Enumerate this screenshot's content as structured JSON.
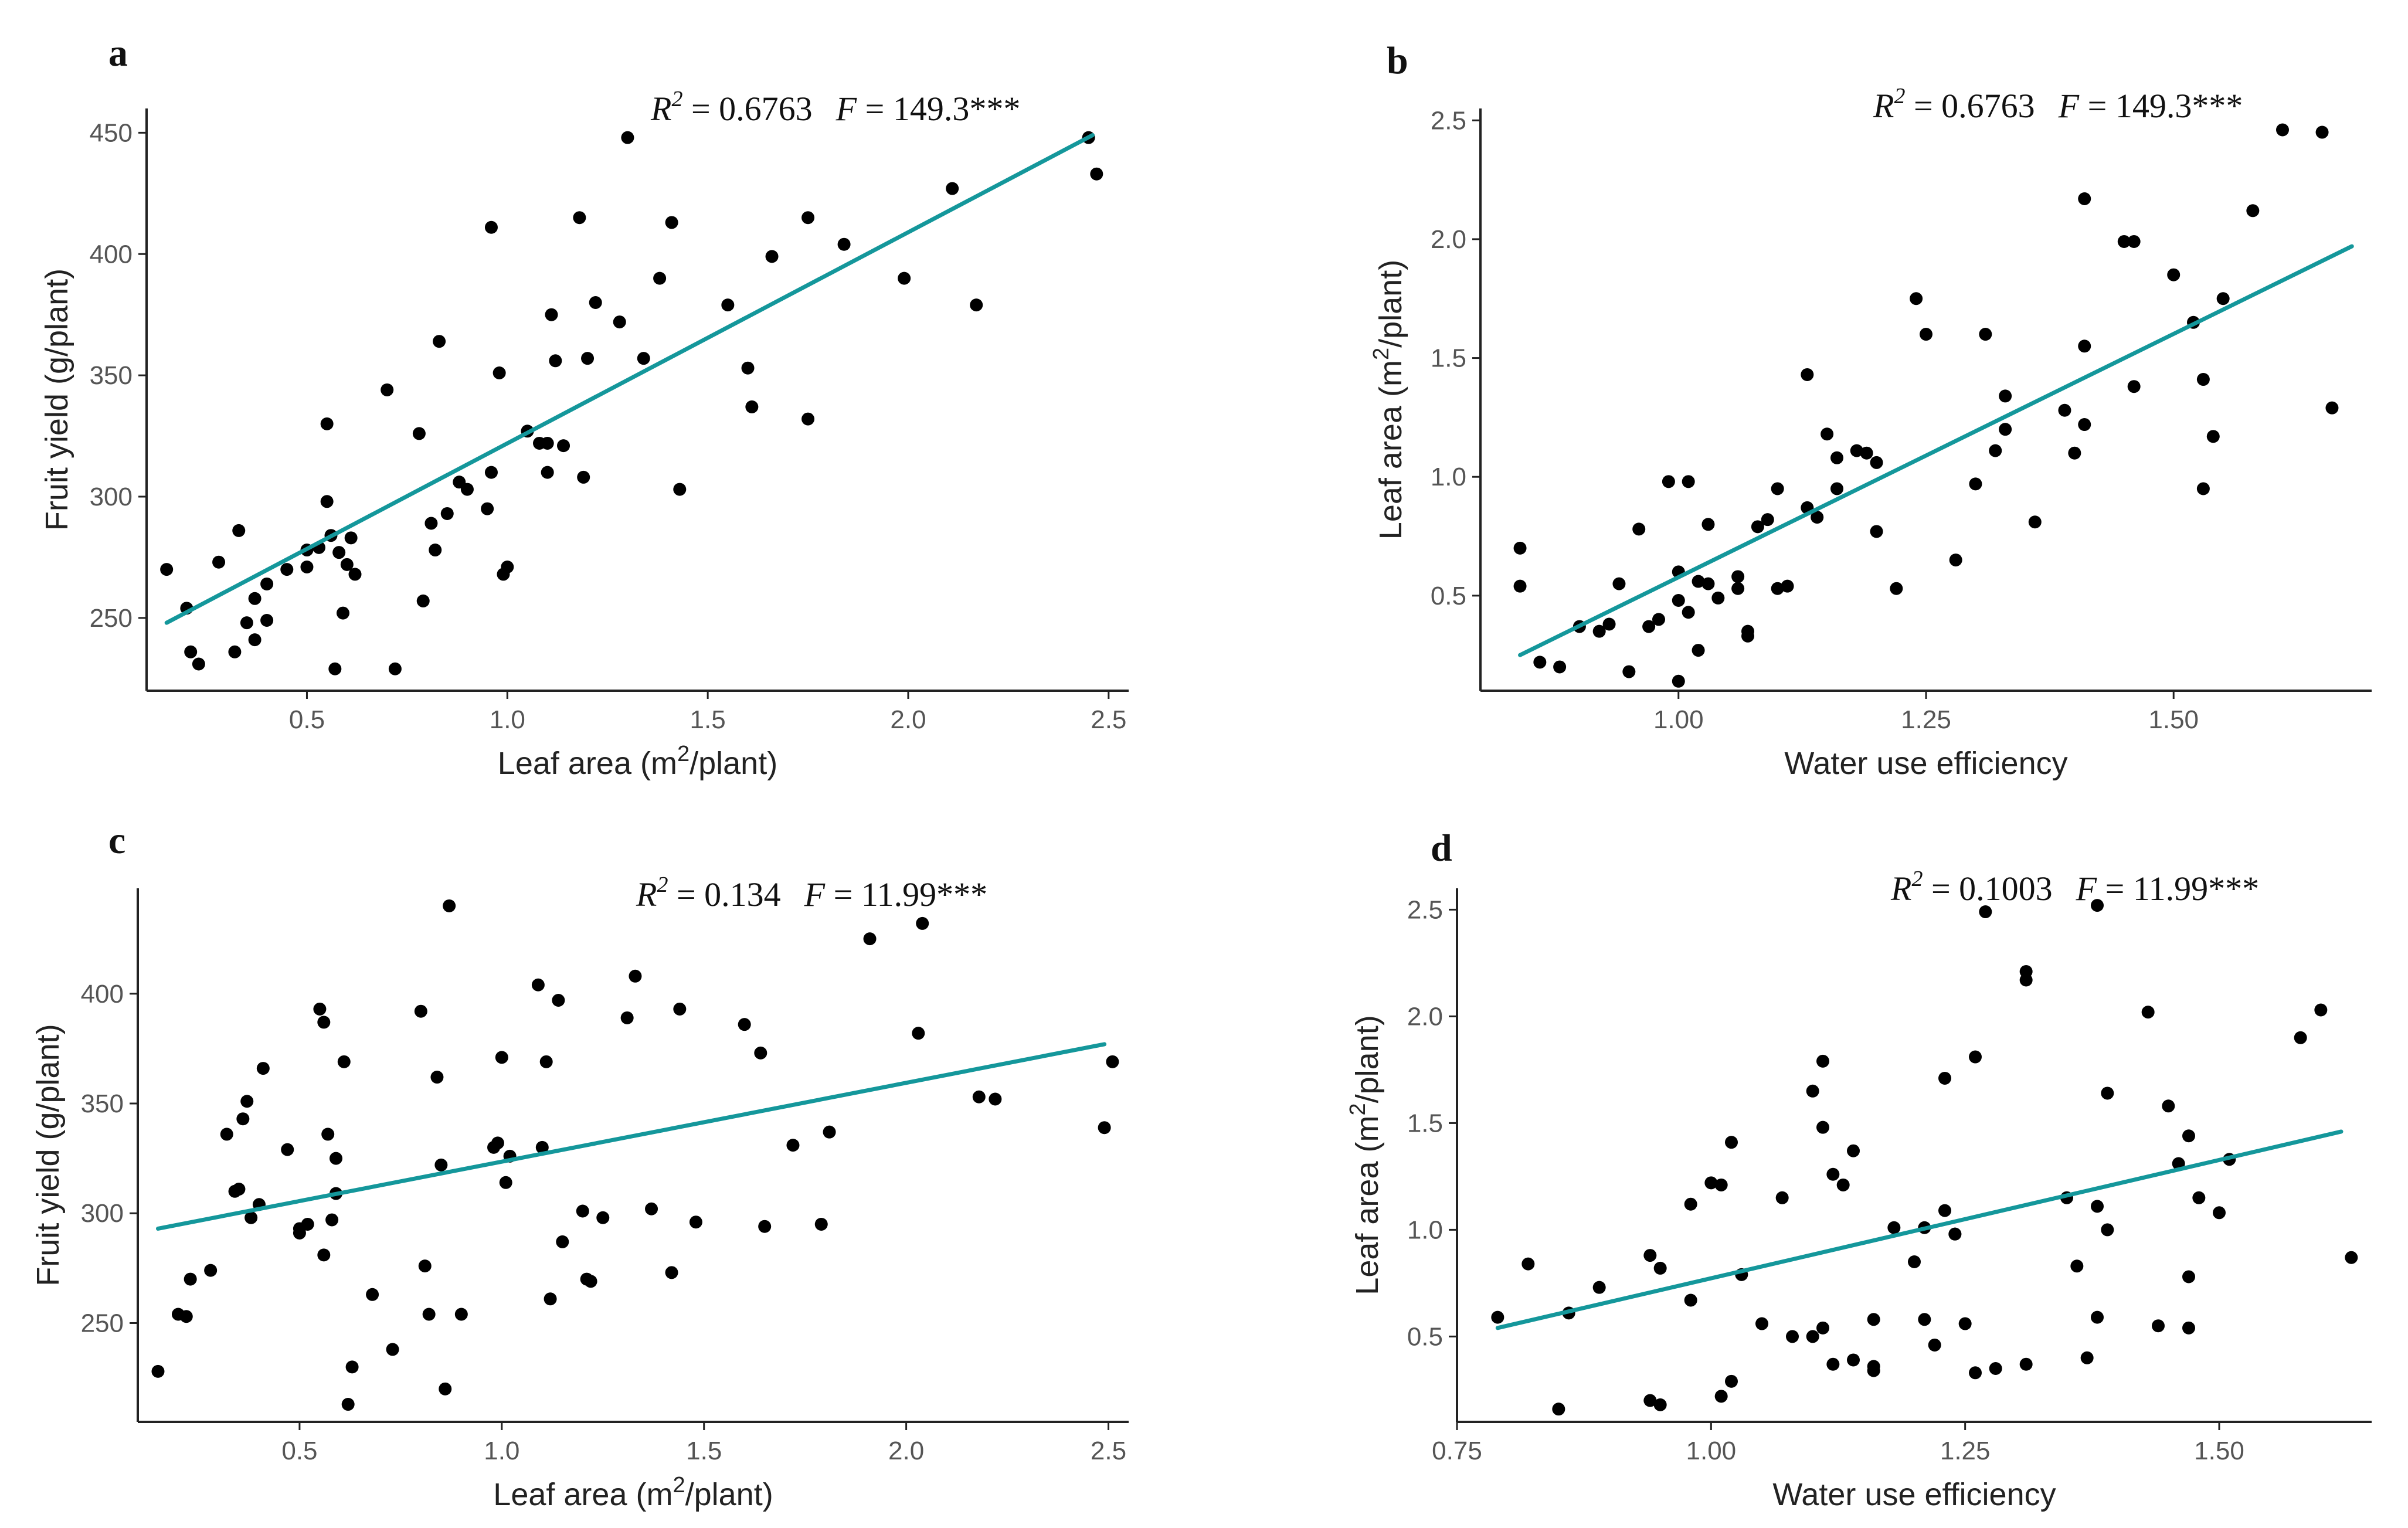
{
  "chart_data": [
    {
      "panel": "a",
      "type": "scatter",
      "stat": {
        "r2": "0.6763",
        "f": "149.3***"
      },
      "xlabel": "Leaf area (m2/plant)",
      "xlabel_parts": {
        "pre": "Leaf area (m",
        "sup": "2",
        "post": "/plant)"
      },
      "ylabel": "Fruit yield (g/plant)",
      "xlim": [
        0.1,
        2.55
      ],
      "ylim": [
        220,
        460
      ],
      "xticks": [
        0.5,
        1.0,
        1.5,
        2.0,
        2.5
      ],
      "xtick_labels": [
        "0.5",
        "1.0",
        "1.5",
        "2.0",
        "2.5"
      ],
      "yticks": [
        250,
        300,
        350,
        400,
        450
      ],
      "ytick_labels": [
        "250",
        "300",
        "350",
        "400",
        "450"
      ],
      "fit": {
        "x": [
          0.15,
          2.46
        ],
        "y": [
          248,
          449
        ]
      },
      "points": [
        [
          0.15,
          270
        ],
        [
          0.2,
          254
        ],
        [
          0.21,
          236
        ],
        [
          0.23,
          231
        ],
        [
          0.28,
          273
        ],
        [
          0.32,
          236
        ],
        [
          0.33,
          286
        ],
        [
          0.35,
          248
        ],
        [
          0.37,
          241
        ],
        [
          0.37,
          258
        ],
        [
          0.4,
          249
        ],
        [
          0.4,
          264
        ],
        [
          0.45,
          270
        ],
        [
          0.5,
          271
        ],
        [
          0.5,
          278
        ],
        [
          0.53,
          279
        ],
        [
          0.55,
          330
        ],
        [
          0.55,
          298
        ],
        [
          0.56,
          284
        ],
        [
          0.57,
          229
        ],
        [
          0.58,
          277
        ],
        [
          0.59,
          252
        ],
        [
          0.6,
          272
        ],
        [
          0.61,
          283
        ],
        [
          0.62,
          268
        ],
        [
          0.7,
          344
        ],
        [
          0.72,
          229
        ],
        [
          0.78,
          326
        ],
        [
          0.79,
          257
        ],
        [
          0.81,
          289
        ],
        [
          0.82,
          278
        ],
        [
          0.83,
          364
        ],
        [
          0.85,
          293
        ],
        [
          0.88,
          306
        ],
        [
          0.9,
          303
        ],
        [
          0.95,
          295
        ],
        [
          0.96,
          411
        ],
        [
          0.96,
          310
        ],
        [
          0.98,
          351
        ],
        [
          0.99,
          268
        ],
        [
          1.0,
          271
        ],
        [
          1.05,
          327
        ],
        [
          1.08,
          322
        ],
        [
          1.1,
          310
        ],
        [
          1.1,
          322
        ],
        [
          1.11,
          375
        ],
        [
          1.12,
          356
        ],
        [
          1.14,
          321
        ],
        [
          1.18,
          415
        ],
        [
          1.19,
          308
        ],
        [
          1.2,
          357
        ],
        [
          1.22,
          380
        ],
        [
          1.28,
          372
        ],
        [
          1.3,
          448
        ],
        [
          1.34,
          357
        ],
        [
          1.38,
          390
        ],
        [
          1.41,
          413
        ],
        [
          1.43,
          303
        ],
        [
          1.55,
          379
        ],
        [
          1.6,
          353
        ],
        [
          1.61,
          337
        ],
        [
          1.66,
          399
        ],
        [
          1.75,
          415
        ],
        [
          1.75,
          332
        ],
        [
          1.84,
          404
        ],
        [
          1.99,
          390
        ],
        [
          2.11,
          427
        ],
        [
          2.17,
          379
        ],
        [
          2.45,
          448
        ],
        [
          2.47,
          433
        ]
      ]
    },
    {
      "panel": "b",
      "type": "scatter",
      "stat": {
        "r2": "0.6763",
        "f": "149.3***"
      },
      "xlabel": "Water use efficiency",
      "ylabel": "Leaf area (m2/plant)",
      "ylabel_parts": {
        "pre": "Leaf area (m",
        "sup": "2",
        "post": "/plant)"
      },
      "xlim": [
        0.8,
        1.7
      ],
      "ylim": [
        0.1,
        2.55
      ],
      "xticks": [
        1.0,
        1.25,
        1.5
      ],
      "xtick_labels": [
        "1.00",
        "1.25",
        "1.50"
      ],
      "yticks": [
        0.5,
        1.0,
        1.5,
        2.0,
        2.5
      ],
      "ytick_labels": [
        "0.5",
        "1.0",
        "1.5",
        "2.0",
        "2.5"
      ],
      "fit": {
        "x": [
          0.84,
          1.68
        ],
        "y": [
          0.25,
          1.97
        ]
      },
      "points": [
        [
          0.84,
          0.7
        ],
        [
          0.84,
          0.54
        ],
        [
          0.86,
          0.22
        ],
        [
          0.88,
          0.2
        ],
        [
          0.9,
          0.37
        ],
        [
          0.92,
          0.35
        ],
        [
          0.93,
          0.38
        ],
        [
          0.94,
          0.55
        ],
        [
          0.95,
          0.18
        ],
        [
          0.96,
          0.78
        ],
        [
          0.97,
          0.37
        ],
        [
          0.98,
          0.4
        ],
        [
          0.99,
          0.98
        ],
        [
          1.0,
          0.6
        ],
        [
          1.0,
          0.48
        ],
        [
          1.0,
          0.14
        ],
        [
          1.01,
          0.43
        ],
        [
          1.01,
          0.98
        ],
        [
          1.02,
          0.27
        ],
        [
          1.02,
          0.56
        ],
        [
          1.03,
          0.55
        ],
        [
          1.03,
          0.8
        ],
        [
          1.04,
          0.49
        ],
        [
          1.06,
          0.58
        ],
        [
          1.06,
          0.53
        ],
        [
          1.07,
          0.33
        ],
        [
          1.07,
          0.35
        ],
        [
          1.08,
          0.79
        ],
        [
          1.09,
          0.82
        ],
        [
          1.1,
          0.95
        ],
        [
          1.1,
          0.53
        ],
        [
          1.11,
          0.54
        ],
        [
          1.13,
          1.43
        ],
        [
          1.13,
          0.87
        ],
        [
          1.14,
          0.83
        ],
        [
          1.15,
          1.18
        ],
        [
          1.16,
          0.95
        ],
        [
          1.16,
          1.08
        ],
        [
          1.18,
          1.11
        ],
        [
          1.19,
          1.1
        ],
        [
          1.2,
          1.06
        ],
        [
          1.2,
          0.77
        ],
        [
          1.22,
          0.53
        ],
        [
          1.24,
          1.75
        ],
        [
          1.25,
          1.6
        ],
        [
          1.28,
          0.65
        ],
        [
          1.3,
          0.97
        ],
        [
          1.31,
          1.6
        ],
        [
          1.32,
          1.11
        ],
        [
          1.33,
          1.34
        ],
        [
          1.33,
          1.2
        ],
        [
          1.36,
          0.81
        ],
        [
          1.39,
          1.28
        ],
        [
          1.4,
          1.1
        ],
        [
          1.41,
          2.17
        ],
        [
          1.41,
          1.55
        ],
        [
          1.41,
          1.22
        ],
        [
          1.45,
          1.99
        ],
        [
          1.46,
          1.99
        ],
        [
          1.46,
          1.38
        ],
        [
          1.5,
          1.85
        ],
        [
          1.52,
          1.65
        ],
        [
          1.53,
          1.41
        ],
        [
          1.53,
          0.95
        ],
        [
          1.54,
          1.17
        ],
        [
          1.55,
          1.75
        ],
        [
          1.58,
          2.12
        ],
        [
          1.61,
          2.46
        ],
        [
          1.65,
          2.45
        ],
        [
          1.66,
          1.29
        ]
      ]
    },
    {
      "panel": "c",
      "type": "scatter",
      "stat": {
        "r2": "0.134",
        "f": "11.99***"
      },
      "xlabel": "Leaf area (m2/plant)",
      "xlabel_parts": {
        "pre": "Leaf area (m",
        "sup": "2",
        "post": "/plant)"
      },
      "ylabel": "Fruit yield (g/plant)",
      "xlim": [
        0.1,
        2.55
      ],
      "ylim": [
        205,
        448
      ],
      "xticks": [
        0.5,
        1.0,
        1.5,
        2.0,
        2.5
      ],
      "xtick_labels": [
        "0.5",
        "1.0",
        "1.5",
        "2.0",
        "2.5"
      ],
      "yticks": [
        250,
        300,
        350,
        400
      ],
      "ytick_labels": [
        "250",
        "300",
        "350",
        "400"
      ],
      "fit": {
        "x": [
          0.15,
          2.49
        ],
        "y": [
          293,
          377
        ]
      },
      "points": [
        [
          0.15,
          228
        ],
        [
          0.2,
          254
        ],
        [
          0.22,
          253
        ],
        [
          0.23,
          270
        ],
        [
          0.28,
          274
        ],
        [
          0.32,
          336
        ],
        [
          0.34,
          310
        ],
        [
          0.35,
          311
        ],
        [
          0.36,
          343
        ],
        [
          0.37,
          351
        ],
        [
          0.38,
          298
        ],
        [
          0.4,
          304
        ],
        [
          0.41,
          366
        ],
        [
          0.47,
          329
        ],
        [
          0.5,
          291
        ],
        [
          0.5,
          293
        ],
        [
          0.52,
          295
        ],
        [
          0.55,
          393
        ],
        [
          0.56,
          387
        ],
        [
          0.56,
          281
        ],
        [
          0.57,
          336
        ],
        [
          0.58,
          297
        ],
        [
          0.59,
          325
        ],
        [
          0.59,
          309
        ],
        [
          0.61,
          369
        ],
        [
          0.62,
          213
        ],
        [
          0.63,
          230
        ],
        [
          0.68,
          263
        ],
        [
          0.73,
          238
        ],
        [
          0.8,
          392
        ],
        [
          0.81,
          276
        ],
        [
          0.82,
          254
        ],
        [
          0.84,
          362
        ],
        [
          0.85,
          322
        ],
        [
          0.86,
          220
        ],
        [
          0.87,
          440
        ],
        [
          0.9,
          254
        ],
        [
          0.98,
          330
        ],
        [
          0.99,
          332
        ],
        [
          1.0,
          371
        ],
        [
          1.01,
          314
        ],
        [
          1.02,
          326
        ],
        [
          1.09,
          404
        ],
        [
          1.1,
          330
        ],
        [
          1.11,
          369
        ],
        [
          1.12,
          261
        ],
        [
          1.14,
          397
        ],
        [
          1.15,
          287
        ],
        [
          1.2,
          301
        ],
        [
          1.21,
          270
        ],
        [
          1.22,
          269
        ],
        [
          1.25,
          298
        ],
        [
          1.31,
          389
        ],
        [
          1.33,
          408
        ],
        [
          1.37,
          302
        ],
        [
          1.42,
          273
        ],
        [
          1.44,
          393
        ],
        [
          1.48,
          296
        ],
        [
          1.6,
          386
        ],
        [
          1.64,
          373
        ],
        [
          1.65,
          294
        ],
        [
          1.72,
          331
        ],
        [
          1.79,
          295
        ],
        [
          1.81,
          337
        ],
        [
          1.91,
          425
        ],
        [
          2.03,
          382
        ],
        [
          2.04,
          432
        ],
        [
          2.18,
          353
        ],
        [
          2.22,
          352
        ],
        [
          2.49,
          339
        ],
        [
          2.51,
          369
        ]
      ]
    },
    {
      "panel": "d",
      "type": "scatter",
      "stat": {
        "r2": "0.1003",
        "f": "11.99***"
      },
      "xlabel": "Water use efficiency",
      "ylabel": "Leaf area (m2/plant)",
      "ylabel_parts": {
        "pre": "Leaf area (m",
        "sup": "2",
        "post": "/plant)"
      },
      "xlim": [
        0.75,
        1.65
      ],
      "ylim": [
        0.1,
        2.6
      ],
      "xticks": [
        0.75,
        1.0,
        1.25,
        1.5
      ],
      "xtick_labels": [
        "0.75",
        "1.00",
        "1.25",
        "1.50"
      ],
      "yticks": [
        0.5,
        1.0,
        1.5,
        2.0,
        2.5
      ],
      "ytick_labels": [
        "0.5",
        "1.0",
        "1.5",
        "2.0",
        "2.5"
      ],
      "fit": {
        "x": [
          0.79,
          1.62
        ],
        "y": [
          0.54,
          1.46
        ]
      },
      "points": [
        [
          0.79,
          0.59
        ],
        [
          0.82,
          0.84
        ],
        [
          0.85,
          0.16
        ],
        [
          0.86,
          0.61
        ],
        [
          0.89,
          0.73
        ],
        [
          0.94,
          0.88
        ],
        [
          0.94,
          0.2
        ],
        [
          0.95,
          0.82
        ],
        [
          0.95,
          0.18
        ],
        [
          0.98,
          0.67
        ],
        [
          0.98,
          1.12
        ],
        [
          1.0,
          1.22
        ],
        [
          1.01,
          1.21
        ],
        [
          1.01,
          0.22
        ],
        [
          1.02,
          1.41
        ],
        [
          1.02,
          0.29
        ],
        [
          1.03,
          0.79
        ],
        [
          1.05,
          0.56
        ],
        [
          1.07,
          1.15
        ],
        [
          1.08,
          0.5
        ],
        [
          1.1,
          0.5
        ],
        [
          1.1,
          1.65
        ],
        [
          1.11,
          0.54
        ],
        [
          1.11,
          1.79
        ],
        [
          1.11,
          1.48
        ],
        [
          1.12,
          0.37
        ],
        [
          1.12,
          1.26
        ],
        [
          1.13,
          1.21
        ],
        [
          1.14,
          1.37
        ],
        [
          1.14,
          0.39
        ],
        [
          1.16,
          0.34
        ],
        [
          1.16,
          0.36
        ],
        [
          1.16,
          0.58
        ],
        [
          1.18,
          1.01
        ],
        [
          1.2,
          0.85
        ],
        [
          1.21,
          0.58
        ],
        [
          1.21,
          1.01
        ],
        [
          1.22,
          0.46
        ],
        [
          1.23,
          1.71
        ],
        [
          1.23,
          1.09
        ],
        [
          1.24,
          0.98
        ],
        [
          1.24,
          0.98
        ],
        [
          1.25,
          0.56
        ],
        [
          1.26,
          0.33
        ],
        [
          1.26,
          1.81
        ],
        [
          1.27,
          2.49
        ],
        [
          1.28,
          0.35
        ],
        [
          1.31,
          0.37
        ],
        [
          1.31,
          2.21
        ],
        [
          1.31,
          2.17
        ],
        [
          1.35,
          1.15
        ],
        [
          1.36,
          0.83
        ],
        [
          1.37,
          0.4
        ],
        [
          1.38,
          0.59
        ],
        [
          1.38,
          1.11
        ],
        [
          1.38,
          2.52
        ],
        [
          1.39,
          1.0
        ],
        [
          1.39,
          1.64
        ],
        [
          1.43,
          2.02
        ],
        [
          1.44,
          0.55
        ],
        [
          1.45,
          1.58
        ],
        [
          1.46,
          1.31
        ],
        [
          1.47,
          0.54
        ],
        [
          1.47,
          0.78
        ],
        [
          1.47,
          1.44
        ],
        [
          1.48,
          1.15
        ],
        [
          1.5,
          1.08
        ],
        [
          1.51,
          1.33
        ],
        [
          1.58,
          1.9
        ],
        [
          1.6,
          2.03
        ],
        [
          1.63,
          0.87
        ]
      ]
    }
  ]
}
